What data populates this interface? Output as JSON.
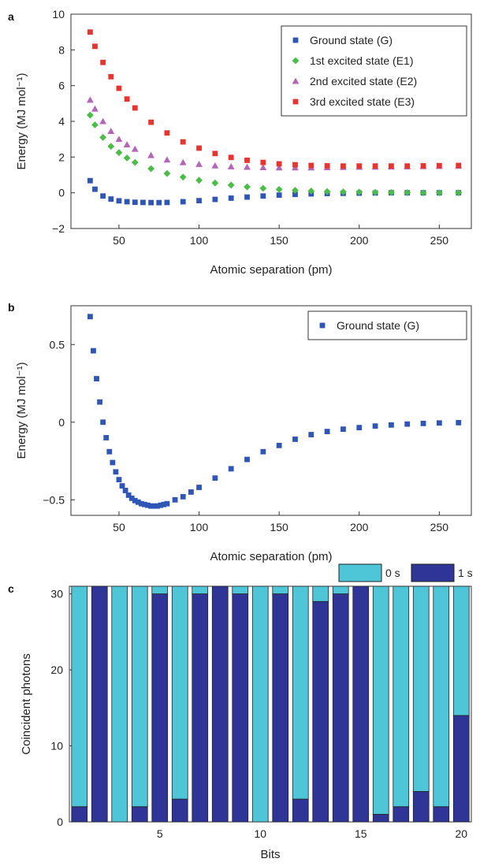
{
  "chart_data": [
    {
      "panel_label": "a",
      "type": "scatter",
      "xlabel": "Atomic separation (pm)",
      "ylabel": "Energy (MJ mol⁻¹)",
      "xlim": [
        20,
        270
      ],
      "ylim": [
        -2,
        10
      ],
      "xticks": [
        50,
        100,
        150,
        200,
        250
      ],
      "yticks": [
        -2,
        0,
        2,
        4,
        6,
        8,
        10
      ],
      "ytick_labels": [
        "−2",
        "0",
        "2",
        "4",
        "6",
        "8",
        "10"
      ],
      "legend_position": "top-right",
      "series": [
        {
          "name": "Ground state (G)",
          "marker": "square",
          "color": "#2f55b5",
          "x": [
            32,
            35,
            40,
            45,
            50,
            55,
            60,
            65,
            70,
            75,
            80,
            90,
            100,
            110,
            120,
            130,
            140,
            150,
            160,
            170,
            180,
            190,
            200,
            210,
            220,
            230,
            240,
            250,
            262
          ],
          "y": [
            0.68,
            0.2,
            -0.18,
            -0.35,
            -0.45,
            -0.5,
            -0.53,
            -0.54,
            -0.55,
            -0.55,
            -0.54,
            -0.5,
            -0.44,
            -0.37,
            -0.3,
            -0.24,
            -0.18,
            -0.13,
            -0.09,
            -0.06,
            -0.04,
            -0.03,
            -0.02,
            -0.01,
            0,
            0,
            0,
            0,
            0
          ]
        },
        {
          "name": "1st excited state (E1)",
          "marker": "diamond",
          "color": "#4cbc48",
          "x": [
            32,
            35,
            40,
            45,
            50,
            55,
            60,
            70,
            80,
            90,
            100,
            110,
            120,
            130,
            140,
            150,
            160,
            170,
            180,
            190,
            200,
            210,
            220,
            230,
            240,
            250,
            262
          ],
          "y": [
            4.35,
            3.8,
            3.1,
            2.6,
            2.25,
            1.95,
            1.7,
            1.35,
            1.08,
            0.88,
            0.7,
            0.55,
            0.43,
            0.33,
            0.25,
            0.19,
            0.14,
            0.1,
            0.07,
            0.05,
            0.04,
            0.03,
            0.02,
            0.01,
            0,
            0,
            0
          ]
        },
        {
          "name": "2nd excited state (E2)",
          "marker": "triangle",
          "color": "#b565b8",
          "x": [
            32,
            35,
            40,
            45,
            50,
            55,
            60,
            70,
            80,
            90,
            100,
            110,
            120,
            130,
            140,
            150,
            160,
            170,
            180,
            190,
            200,
            210,
            220,
            230,
            240,
            250,
            262
          ],
          "y": [
            5.2,
            4.7,
            4.0,
            3.45,
            3.0,
            2.7,
            2.45,
            2.1,
            1.85,
            1.7,
            1.6,
            1.52,
            1.47,
            1.44,
            1.42,
            1.41,
            1.41,
            1.41,
            1.42,
            1.43,
            1.44,
            1.45,
            1.46,
            1.47,
            1.48,
            1.49,
            1.5
          ]
        },
        {
          "name": "3rd excited state (E3)",
          "marker": "square",
          "color": "#e8342f",
          "x": [
            32,
            35,
            40,
            45,
            50,
            55,
            60,
            70,
            80,
            90,
            100,
            110,
            120,
            130,
            140,
            150,
            160,
            170,
            180,
            190,
            200,
            210,
            220,
            230,
            240,
            250,
            262
          ],
          "y": [
            9.0,
            8.2,
            7.3,
            6.5,
            5.85,
            5.25,
            4.75,
            3.95,
            3.35,
            2.85,
            2.5,
            2.2,
            1.98,
            1.82,
            1.7,
            1.62,
            1.57,
            1.53,
            1.51,
            1.5,
            1.5,
            1.5,
            1.5,
            1.5,
            1.51,
            1.52,
            1.53
          ]
        }
      ]
    },
    {
      "panel_label": "b",
      "type": "scatter",
      "xlabel": "Atomic separation (pm)",
      "ylabel": "Energy (MJ mol⁻¹)",
      "xlim": [
        20,
        270
      ],
      "ylim": [
        -0.6,
        0.75
      ],
      "xticks": [
        50,
        100,
        150,
        200,
        250
      ],
      "yticks": [
        -0.5,
        0,
        0.5
      ],
      "ytick_labels": [
        "−0.5",
        "0",
        "0.5"
      ],
      "legend_position": "top-right",
      "series": [
        {
          "name": "Ground state (G)",
          "marker": "square",
          "color": "#2f55b5",
          "x": [
            32,
            34,
            36,
            38,
            40,
            42,
            44,
            46,
            48,
            50,
            52,
            54,
            56,
            58,
            60,
            62,
            64,
            66,
            68,
            70,
            72,
            74,
            76,
            78,
            80,
            85,
            90,
            95,
            100,
            110,
            120,
            130,
            140,
            150,
            160,
            170,
            180,
            190,
            200,
            210,
            220,
            230,
            240,
            250,
            262
          ],
          "y": [
            0.68,
            0.46,
            0.28,
            0.13,
            0.0,
            -0.1,
            -0.19,
            -0.26,
            -0.32,
            -0.37,
            -0.41,
            -0.44,
            -0.47,
            -0.49,
            -0.505,
            -0.515,
            -0.525,
            -0.53,
            -0.535,
            -0.54,
            -0.54,
            -0.54,
            -0.535,
            -0.53,
            -0.525,
            -0.5,
            -0.48,
            -0.45,
            -0.42,
            -0.36,
            -0.3,
            -0.24,
            -0.19,
            -0.15,
            -0.11,
            -0.08,
            -0.06,
            -0.045,
            -0.035,
            -0.025,
            -0.018,
            -0.012,
            -0.008,
            -0.005,
            -0.003
          ]
        }
      ]
    },
    {
      "panel_label": "c",
      "type": "bar",
      "stacked": true,
      "xlabel": "Bits",
      "ylabel": "Coincident photons",
      "xlim": [
        0.5,
        20.5
      ],
      "ylim": [
        0,
        31
      ],
      "xticks": [
        5,
        10,
        15,
        20
      ],
      "yticks": [
        0,
        10,
        20,
        30
      ],
      "legend_position": "top-right",
      "categories": [
        1,
        2,
        3,
        4,
        5,
        6,
        7,
        8,
        9,
        10,
        11,
        12,
        13,
        14,
        15,
        16,
        17,
        18,
        19,
        20
      ],
      "series": [
        {
          "name": "1 s",
          "color": "#2e3596",
          "values": [
            2,
            31,
            0,
            2,
            30,
            3,
            30,
            31,
            30,
            0,
            30,
            3,
            29,
            30,
            31,
            1,
            2,
            4,
            2,
            14
          ]
        },
        {
          "name": "0 s",
          "color": "#4fc6d8",
          "values": [
            29,
            0,
            31,
            29,
            1,
            28,
            1,
            0,
            1,
            31,
            1,
            28,
            2,
            1,
            0,
            30,
            29,
            27,
            29,
            17
          ]
        }
      ]
    }
  ]
}
